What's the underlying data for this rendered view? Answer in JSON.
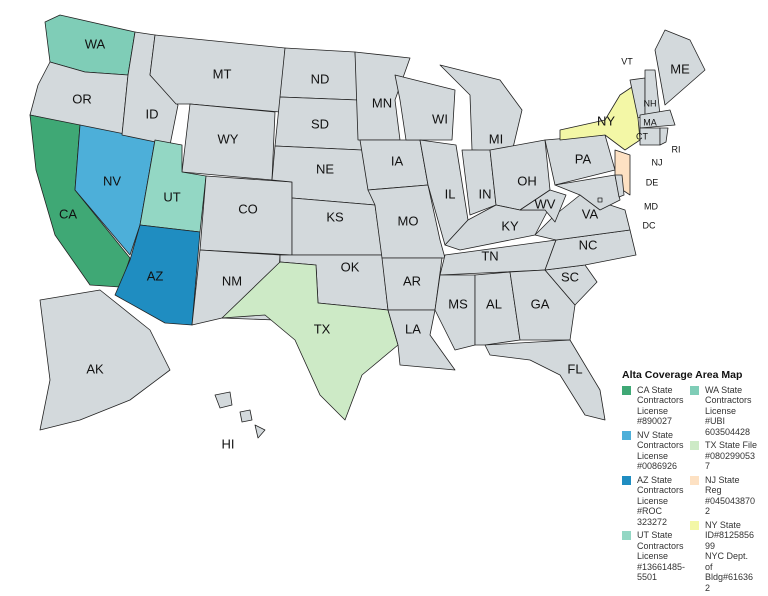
{
  "states": [
    {
      "abbr": "WA",
      "fill": "#7fcdb7"
    },
    {
      "abbr": "OR"
    },
    {
      "abbr": "CA",
      "fill": "#3fa875"
    },
    {
      "abbr": "NV",
      "fill": "#4dafd9"
    },
    {
      "abbr": "ID"
    },
    {
      "abbr": "MT"
    },
    {
      "abbr": "WY"
    },
    {
      "abbr": "UT",
      "fill": "#93d7c4"
    },
    {
      "abbr": "AZ",
      "fill": "#1f8dc1"
    },
    {
      "abbr": "CO"
    },
    {
      "abbr": "NM"
    },
    {
      "abbr": "ND"
    },
    {
      "abbr": "SD"
    },
    {
      "abbr": "NE"
    },
    {
      "abbr": "KS"
    },
    {
      "abbr": "OK"
    },
    {
      "abbr": "TX",
      "fill": "#cdeac6"
    },
    {
      "abbr": "MN"
    },
    {
      "abbr": "IA"
    },
    {
      "abbr": "MO"
    },
    {
      "abbr": "AR"
    },
    {
      "abbr": "LA"
    },
    {
      "abbr": "WI"
    },
    {
      "abbr": "IL"
    },
    {
      "abbr": "MI"
    },
    {
      "abbr": "IN"
    },
    {
      "abbr": "OH"
    },
    {
      "abbr": "KY"
    },
    {
      "abbr": "TN"
    },
    {
      "abbr": "MS"
    },
    {
      "abbr": "AL"
    },
    {
      "abbr": "GA"
    },
    {
      "abbr": "FL"
    },
    {
      "abbr": "SC"
    },
    {
      "abbr": "NC"
    },
    {
      "abbr": "VA"
    },
    {
      "abbr": "WV"
    },
    {
      "abbr": "PA"
    },
    {
      "abbr": "NY",
      "fill": "#f3f7a6"
    },
    {
      "abbr": "NJ",
      "fill": "#fde1c3"
    },
    {
      "abbr": "MD"
    },
    {
      "abbr": "DE"
    },
    {
      "abbr": "DC"
    },
    {
      "abbr": "VT"
    },
    {
      "abbr": "NH"
    },
    {
      "abbr": "ME"
    },
    {
      "abbr": "MA"
    },
    {
      "abbr": "CT"
    },
    {
      "abbr": "RI"
    },
    {
      "abbr": "AK"
    },
    {
      "abbr": "HI"
    }
  ],
  "default_fill": "#d3d9dc",
  "legend": {
    "title": "Alta Coverage Area Map",
    "left": [
      {
        "color": "#3fa875",
        "text": "CA State\nContractors\nLicense\n#890027"
      },
      {
        "color": "#4dafd9",
        "text": "NV State\nContractors\nLicense\n#0086926"
      },
      {
        "color": "#1f8dc1",
        "text": "AZ State\nContractors\nLicense\n#ROC\n323272"
      },
      {
        "color": "#93d7c4",
        "text": "UT State\nContractors\nLicense\n#13661485-\n5501"
      }
    ],
    "right": [
      {
        "color": "#7fcdb7",
        "text": "WA State\nContractors\nLicense\n#UBI\n603504428"
      },
      {
        "color": "#cdeac6",
        "text": "TX State File\n#080299053\n7"
      },
      {
        "color": "#fde1c3",
        "text": "NJ State\nReg\n#045043870\n2"
      },
      {
        "color": "#f3f7a6",
        "text": "NY State\nID#8125856\n99\nNYC Dept.\nof\nBldg#61636\n2"
      }
    ]
  }
}
